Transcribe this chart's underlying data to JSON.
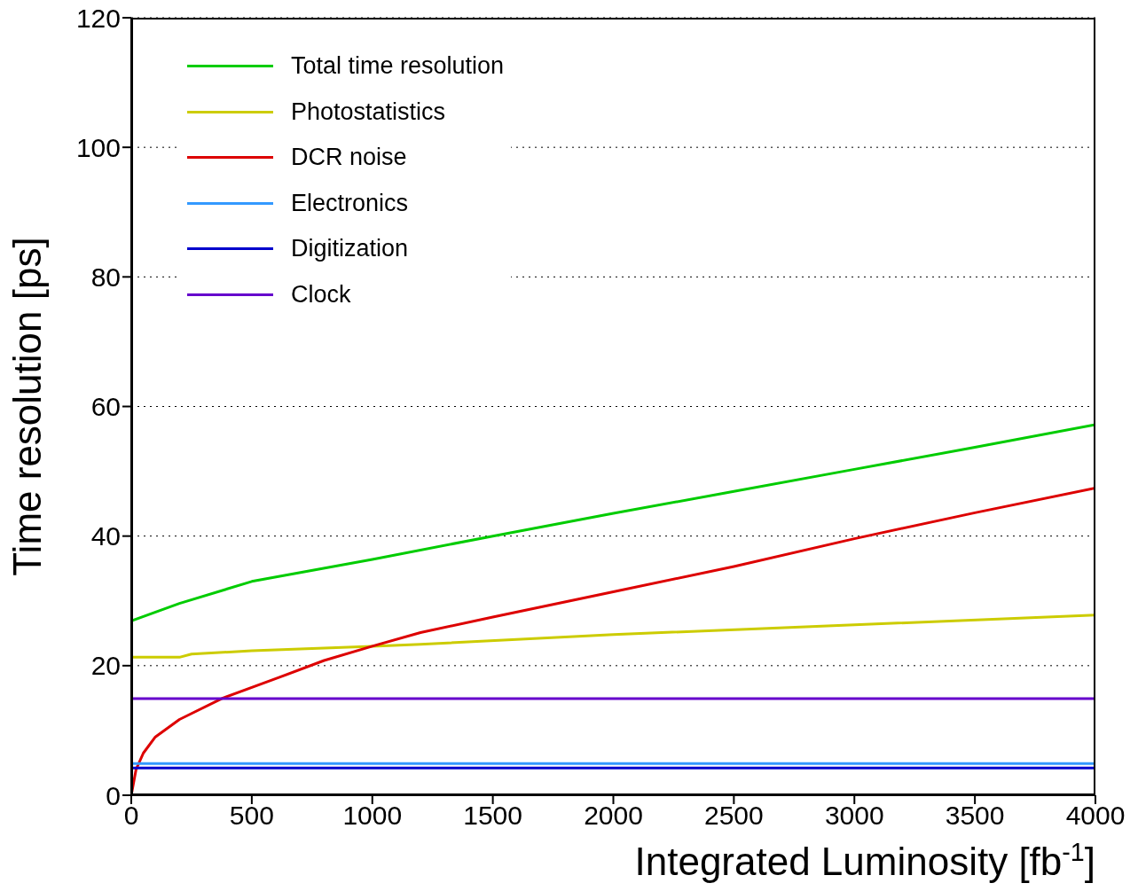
{
  "chart_data": {
    "type": "line",
    "xlabel": "Integrated Luminosity [fb$^{-1}$]",
    "ylabel": "Time resolution [ps]",
    "xlim": [
      0,
      4000
    ],
    "xticks": [
      0,
      500,
      1000,
      1500,
      2000,
      2500,
      3000,
      3500,
      4000
    ],
    "ylim": [
      0,
      120
    ],
    "yticks": [
      0,
      20,
      40,
      60,
      80,
      100,
      120
    ],
    "grid": "y",
    "legend": "top left",
    "line_style": "solid",
    "marker": "none",
    "series": [
      {
        "name": "Total time resolution",
        "color": "#00cc00",
        "x": [
          0,
          200,
          500,
          1000,
          1500,
          2000,
          2500,
          3000,
          3500,
          4000
        ],
        "values": [
          26.9,
          29.6,
          33.0,
          36.4,
          40.0,
          43.5,
          46.9,
          50.3,
          53.7,
          57.2
        ]
      },
      {
        "name": "Photostatistics",
        "color": "#cccc00",
        "x": [
          0,
          200,
          250,
          500,
          1000,
          1200,
          2000,
          3000,
          4000
        ],
        "values": [
          21.3,
          21.3,
          21.8,
          22.3,
          23.0,
          23.3,
          24.8,
          26.3,
          27.8
        ]
      },
      {
        "name": "DCR noise",
        "color": "#dd0000",
        "x": [
          0,
          20,
          50,
          100,
          200,
          380,
          600,
          800,
          1000,
          1200,
          1500,
          2000,
          2500,
          3000,
          3500,
          4000
        ],
        "values": [
          0,
          4,
          6.5,
          9,
          11.7,
          15,
          18,
          20.8,
          23.0,
          25.1,
          27.5,
          31.4,
          35.3,
          39.6,
          43.6,
          47.4
        ]
      },
      {
        "name": "Electronics",
        "color": "#3399ff",
        "x": [
          0,
          4000
        ],
        "values": [
          4.9,
          4.9
        ]
      },
      {
        "name": "Digitization",
        "color": "#0000cc",
        "x": [
          0,
          4000
        ],
        "values": [
          4.2,
          4.2
        ]
      },
      {
        "name": "Clock",
        "color": "#6600cc",
        "x": [
          0,
          4000
        ],
        "values": [
          14.9,
          14.9
        ]
      }
    ]
  }
}
